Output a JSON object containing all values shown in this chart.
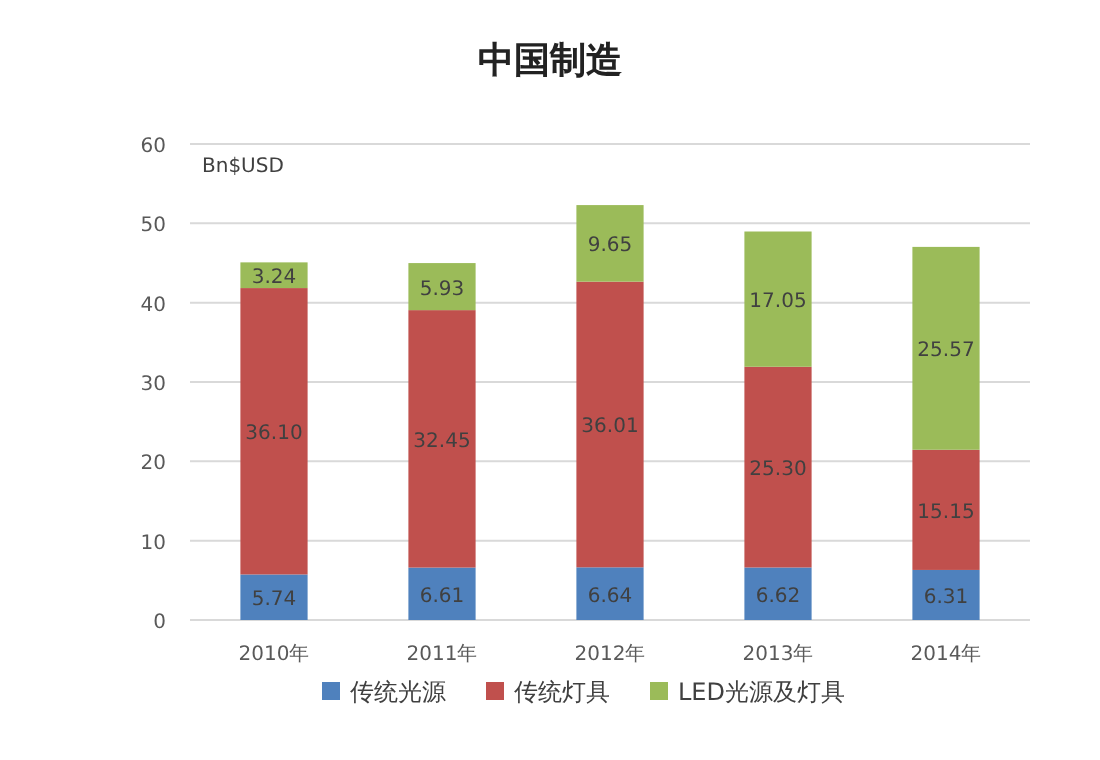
{
  "chart_data": {
    "type": "bar",
    "title": "中国制造",
    "annotations": [
      "Bn$USD"
    ],
    "categories": [
      "2010年",
      "2011年",
      "2012年",
      "2013年",
      "2014年"
    ],
    "series": [
      {
        "name": "传统光源",
        "color": "#4f81bd",
        "values": [
          5.74,
          6.61,
          6.64,
          6.62,
          6.31
        ],
        "value_labels": [
          "5.74",
          "6.61",
          "6.64",
          "6.62",
          "6.31"
        ]
      },
      {
        "name": "传统灯具",
        "color": "#c0504d",
        "values": [
          36.1,
          32.45,
          36.01,
          25.3,
          15.15
        ],
        "value_labels": [
          "36.10",
          "32.45",
          "36.01",
          "25.30",
          "15.15"
        ]
      },
      {
        "name": "LED光源及灯具",
        "color": "#9bbb59",
        "values": [
          3.24,
          5.93,
          9.65,
          17.05,
          25.57
        ],
        "value_labels": [
          "3.24",
          "5.93",
          "9.65",
          "17.05",
          "25.57"
        ]
      }
    ],
    "stacked": true,
    "ylim": [
      0,
      60
    ],
    "yticks": [
      0,
      10,
      20,
      30,
      40,
      50,
      60
    ],
    "grid": "y",
    "legend": "bottom"
  }
}
